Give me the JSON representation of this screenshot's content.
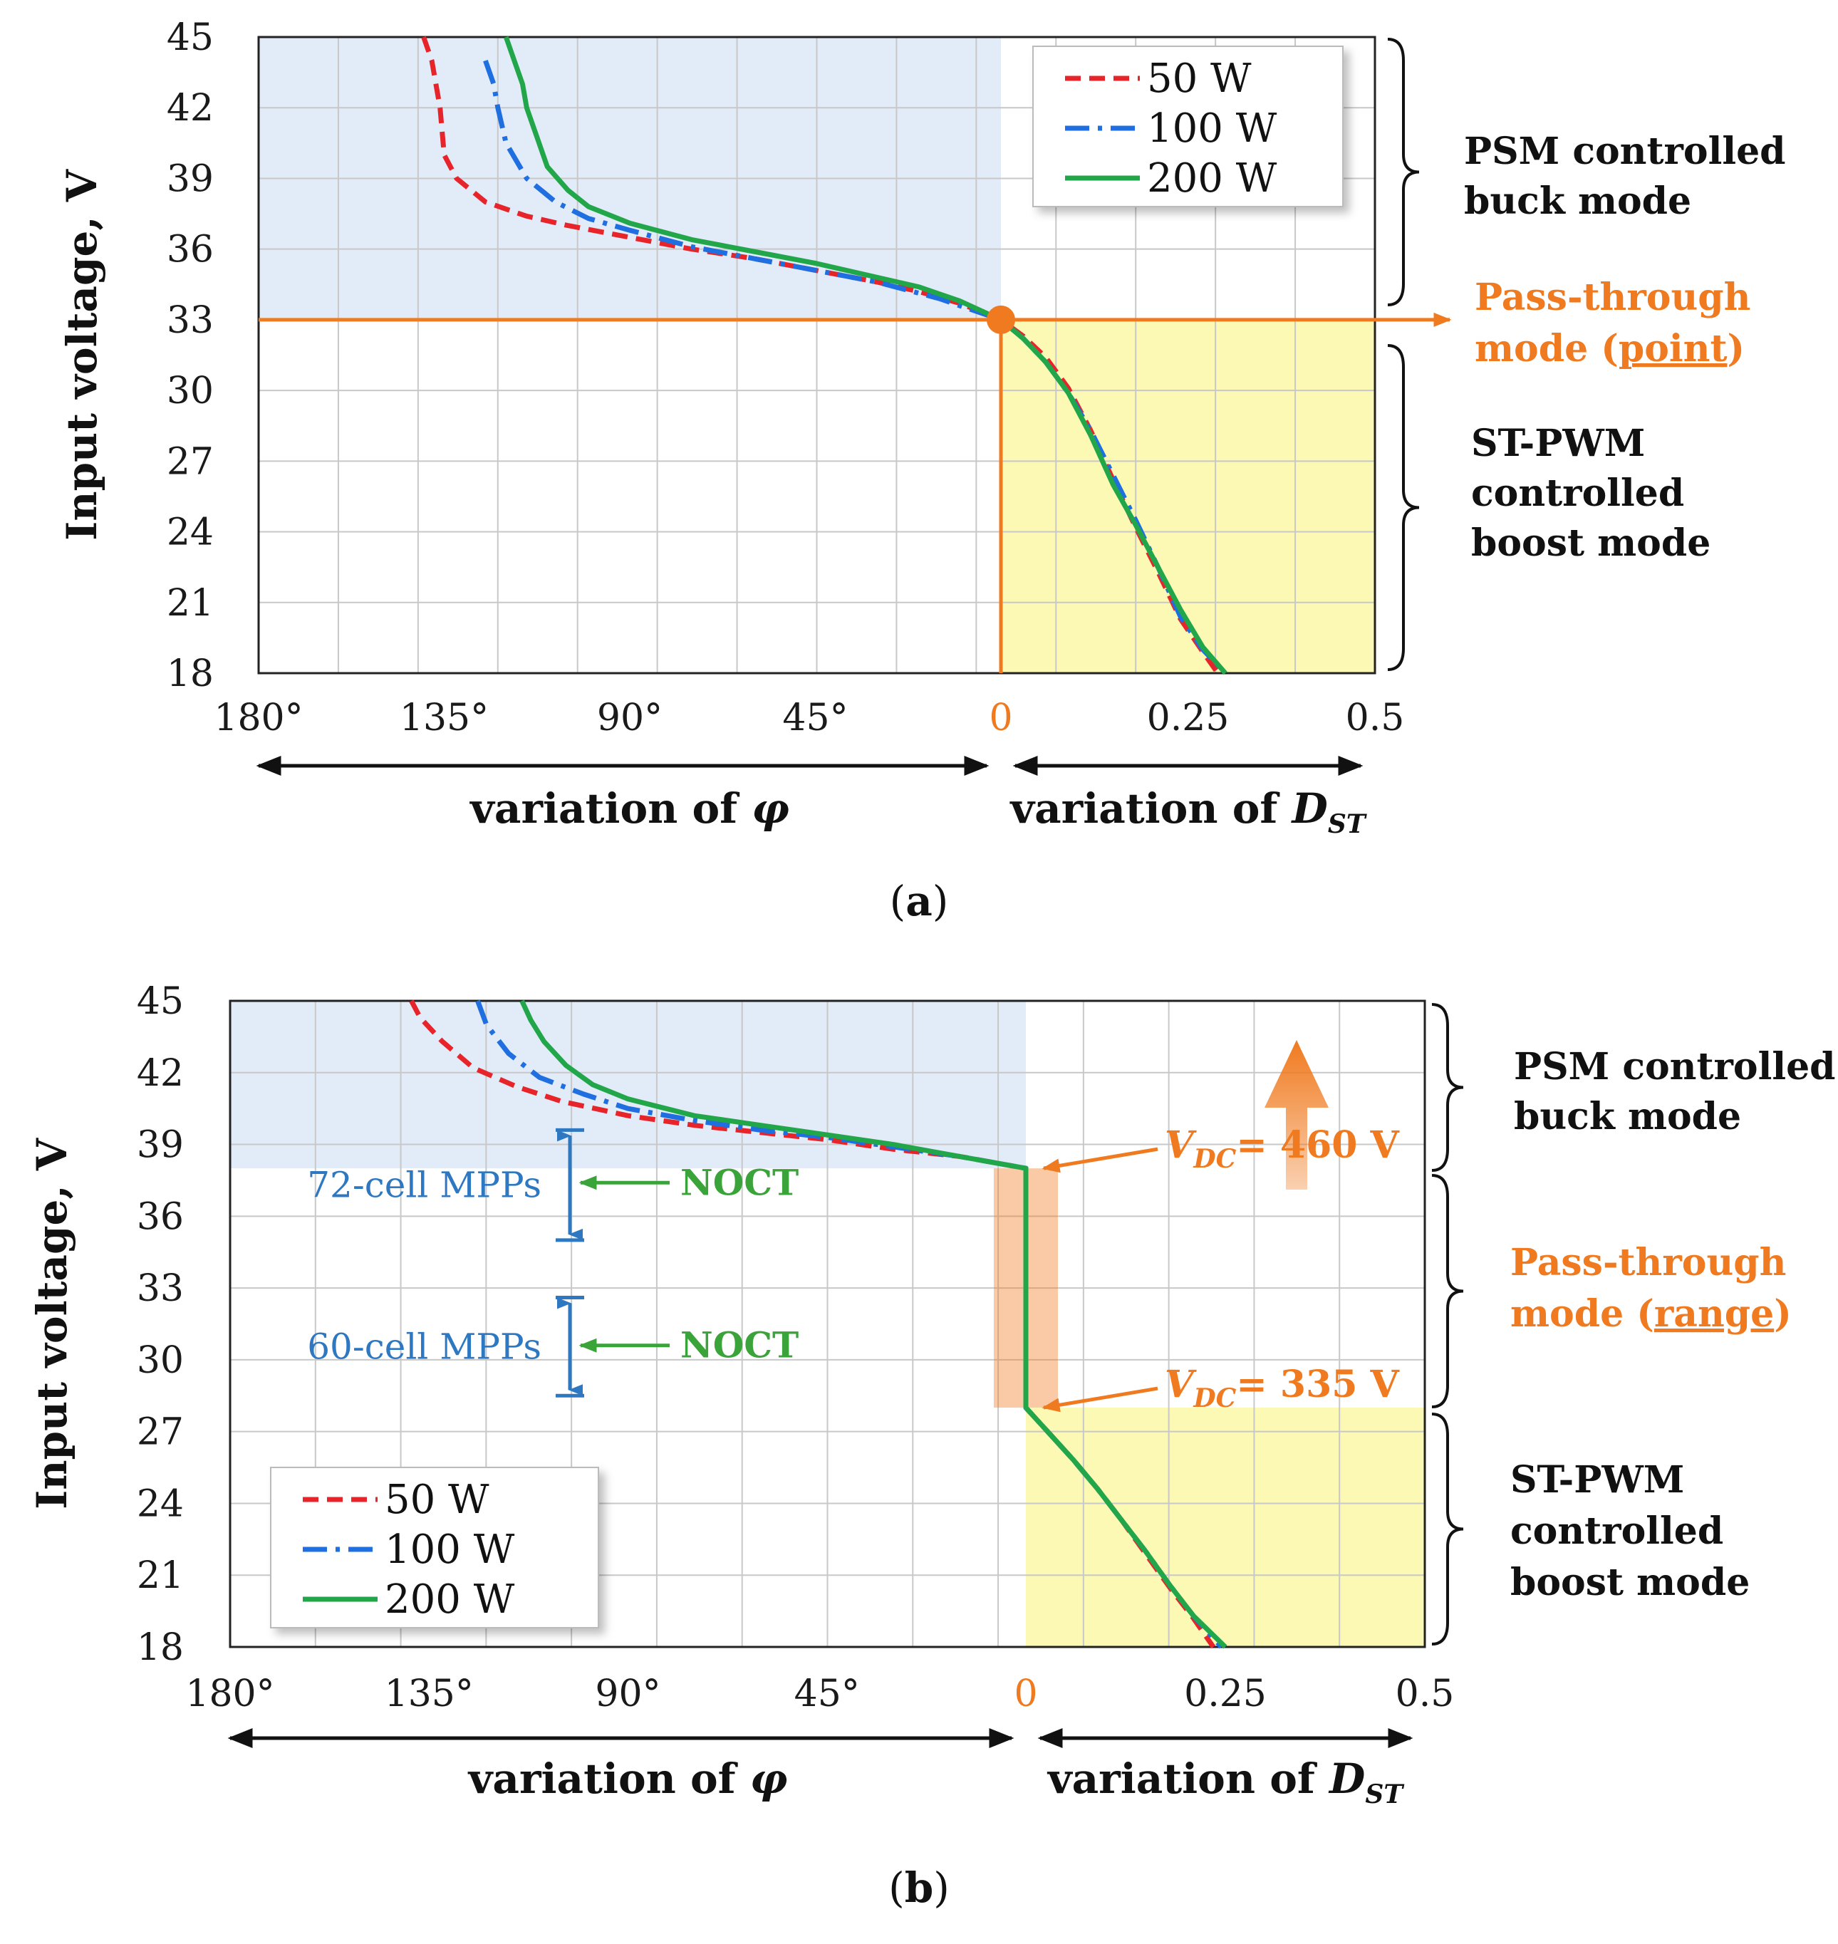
{
  "colors": {
    "w50": "#e8242b",
    "w100": "#1f6fe0",
    "w200": "#22a64a",
    "orange": "#f07a1f",
    "blueRegion": "#e2ebf8",
    "yellowRegion": "#fbf9b4",
    "grid": "#c8c8c8",
    "mppBlue": "#2e78c2"
  },
  "chart_data": [
    {
      "id": "a",
      "type": "line",
      "caption_letter": "a",
      "ylabel": "Input voltage, V",
      "ylim": [
        18,
        45
      ],
      "yticks": [
        "45",
        "42",
        "39",
        "36",
        "33",
        "30",
        "27",
        "24",
        "21",
        "18"
      ],
      "xticks_left": [
        "180°",
        "135°",
        "90°",
        "45°"
      ],
      "xtick_zero": "0",
      "xticks_right": [
        "0.25",
        "0.5"
      ],
      "xlabel_left": "variation of φ",
      "xlabel_right_main": "variation of D",
      "xlabel_right_sub": "ST",
      "legend": [
        "50 W",
        "100 W",
        "200 W"
      ],
      "pass_voltage": 33,
      "regions": {
        "buck": [
          "PSM controlled",
          "buck mode"
        ],
        "pass": [
          "Pass-through",
          "mode (",
          "point",
          ")"
        ],
        "boost": [
          "ST-PWM",
          "controlled",
          "boost mode"
        ]
      },
      "series": [
        {
          "name": "50 W",
          "left_phi": [
            [
              0,
              33
            ],
            [
              10,
              33.7
            ],
            [
              20,
              34.2
            ],
            [
              30,
              34.6
            ],
            [
              45,
              35.1
            ],
            [
              60,
              35.6
            ],
            [
              75,
              36
            ],
            [
              90,
              36.5
            ],
            [
              105,
              37
            ],
            [
              115,
              37.4
            ],
            [
              125,
              38
            ],
            [
              132,
              39
            ],
            [
              135,
              40
            ],
            [
              136,
              42
            ],
            [
              138,
              44
            ],
            [
              140,
              45
            ]
          ],
          "right_d": [
            [
              0,
              33
            ],
            [
              0.03,
              32.3
            ],
            [
              0.06,
              31.4
            ],
            [
              0.09,
              30.1
            ],
            [
              0.12,
              28.3
            ],
            [
              0.15,
              26.2
            ],
            [
              0.18,
              24.2
            ],
            [
              0.21,
              22.3
            ],
            [
              0.24,
              20.3
            ],
            [
              0.27,
              18.9
            ],
            [
              0.29,
              18
            ]
          ]
        },
        {
          "name": "100 W",
          "left_phi": [
            [
              0,
              33
            ],
            [
              15,
              33.9
            ],
            [
              30,
              34.6
            ],
            [
              45,
              35.1
            ],
            [
              60,
              35.6
            ],
            [
              75,
              36.1
            ],
            [
              90,
              36.8
            ],
            [
              100,
              37.3
            ],
            [
              108,
              38
            ],
            [
              115,
              39
            ],
            [
              120,
              40.5
            ],
            [
              122,
              42
            ],
            [
              123,
              43
            ],
            [
              125,
              44
            ]
          ],
          "right_d": [
            [
              0,
              33
            ],
            [
              0.03,
              32.2
            ],
            [
              0.06,
              31.2
            ],
            [
              0.09,
              29.9
            ],
            [
              0.12,
              28.3
            ],
            [
              0.15,
              26.4
            ],
            [
              0.18,
              24.5
            ],
            [
              0.21,
              22.5
            ],
            [
              0.24,
              20.4
            ],
            [
              0.27,
              19
            ],
            [
              0.3,
              18
            ]
          ]
        },
        {
          "name": "200 W",
          "left_phi": [
            [
              0,
              33
            ],
            [
              10,
              33.8
            ],
            [
              20,
              34.4
            ],
            [
              30,
              34.8
            ],
            [
              45,
              35.4
            ],
            [
              60,
              35.9
            ],
            [
              75,
              36.4
            ],
            [
              90,
              37.1
            ],
            [
              100,
              37.8
            ],
            [
              105,
              38.5
            ],
            [
              110,
              39.5
            ],
            [
              113,
              41
            ],
            [
              115,
              42
            ],
            [
              116,
              43
            ],
            [
              118,
              44
            ],
            [
              120,
              45
            ]
          ],
          "right_d": [
            [
              0,
              33
            ],
            [
              0.03,
              32.2
            ],
            [
              0.06,
              31.2
            ],
            [
              0.09,
              29.9
            ],
            [
              0.12,
              28.1
            ],
            [
              0.15,
              26
            ],
            [
              0.18,
              24.3
            ],
            [
              0.21,
              22.5
            ],
            [
              0.24,
              20.7
            ],
            [
              0.27,
              19.1
            ],
            [
              0.3,
              18
            ]
          ]
        }
      ]
    },
    {
      "id": "b",
      "type": "line",
      "caption_letter": "b",
      "ylabel": "Input voltage, V",
      "ylim": [
        18,
        45
      ],
      "yticks": [
        "45",
        "42",
        "39",
        "36",
        "33",
        "30",
        "27",
        "24",
        "21",
        "18"
      ],
      "xticks_left": [
        "180°",
        "135°",
        "90°",
        "45°"
      ],
      "xtick_zero": "0",
      "xticks_right": [
        "0.25",
        "0.5"
      ],
      "xlabel_left": "variation of φ",
      "xlabel_right_main": "variation of D",
      "xlabel_right_sub": "ST",
      "legend": [
        "50 W",
        "100 W",
        "200 W"
      ],
      "pass_range": [
        28,
        38
      ],
      "regions": {
        "buck": [
          "PSM controlled",
          "buck mode"
        ],
        "pass": [
          "Pass-through",
          "mode (",
          "range",
          ")"
        ],
        "boost": [
          "ST-PWM",
          "controlled",
          "boost mode"
        ]
      },
      "annotations": {
        "vdc_high": {
          "main": "V",
          "sub": "DC",
          "rest": "= 460 V",
          "voltage": 38
        },
        "vdc_low": {
          "main": "V",
          "sub": "DC",
          "rest": "= 335 V",
          "voltage": 28
        },
        "mpp72": {
          "label": "72-cell MPPs",
          "range": [
            35,
            39.6
          ],
          "noct": "NOCT",
          "noct_v": 37.4
        },
        "mpp60": {
          "label": "60-cell MPPs",
          "range": [
            28.5,
            32.6
          ],
          "noct": "NOCT",
          "noct_v": 30.6
        }
      },
      "series": [
        {
          "name": "50 W",
          "left_phi": [
            [
              0,
              38
            ],
            [
              15,
              38.5
            ],
            [
              30,
              38.8
            ],
            [
              45,
              39.2
            ],
            [
              60,
              39.5
            ],
            [
              75,
              39.8
            ],
            [
              90,
              40.2
            ],
            [
              105,
              40.8
            ],
            [
              115,
              41.4
            ],
            [
              125,
              42.2
            ],
            [
              132,
              43.3
            ],
            [
              137,
              44.3
            ],
            [
              139,
              45
            ]
          ],
          "right_d": [
            [
              0,
              28
            ],
            [
              0.03,
              26.9
            ],
            [
              0.06,
              25.8
            ],
            [
              0.09,
              24.6
            ],
            [
              0.12,
              23.3
            ],
            [
              0.15,
              21.9
            ],
            [
              0.18,
              20.5
            ],
            [
              0.21,
              19.2
            ],
            [
              0.235,
              18
            ]
          ]
        },
        {
          "name": "100 W",
          "left_phi": [
            [
              0,
              38
            ],
            [
              15,
              38.5
            ],
            [
              30,
              38.9
            ],
            [
              45,
              39.3
            ],
            [
              60,
              39.6
            ],
            [
              75,
              40
            ],
            [
              90,
              40.5
            ],
            [
              100,
              41.1
            ],
            [
              110,
              41.8
            ],
            [
              117,
              42.8
            ],
            [
              122,
              44
            ],
            [
              124,
              45
            ]
          ],
          "right_d": [
            [
              0,
              28
            ],
            [
              0.03,
              26.9
            ],
            [
              0.06,
              25.8
            ],
            [
              0.09,
              24.6
            ],
            [
              0.12,
              23.3
            ],
            [
              0.15,
              22
            ],
            [
              0.18,
              20.6
            ],
            [
              0.21,
              19.3
            ],
            [
              0.245,
              18
            ]
          ]
        },
        {
          "name": "200 W",
          "left_phi": [
            [
              0,
              38
            ],
            [
              15,
              38.5
            ],
            [
              30,
              39
            ],
            [
              45,
              39.4
            ],
            [
              60,
              39.8
            ],
            [
              75,
              40.2
            ],
            [
              90,
              40.9
            ],
            [
              98,
              41.5
            ],
            [
              104,
              42.3
            ],
            [
              109,
              43.3
            ],
            [
              112,
              44.2
            ],
            [
              114,
              45
            ]
          ],
          "right_d": [
            [
              0,
              28
            ],
            [
              0.03,
              26.9
            ],
            [
              0.06,
              25.8
            ],
            [
              0.09,
              24.6
            ],
            [
              0.12,
              23.3
            ],
            [
              0.15,
              22
            ],
            [
              0.18,
              20.6
            ],
            [
              0.21,
              19.3
            ],
            [
              0.25,
              18
            ]
          ]
        }
      ]
    }
  ]
}
